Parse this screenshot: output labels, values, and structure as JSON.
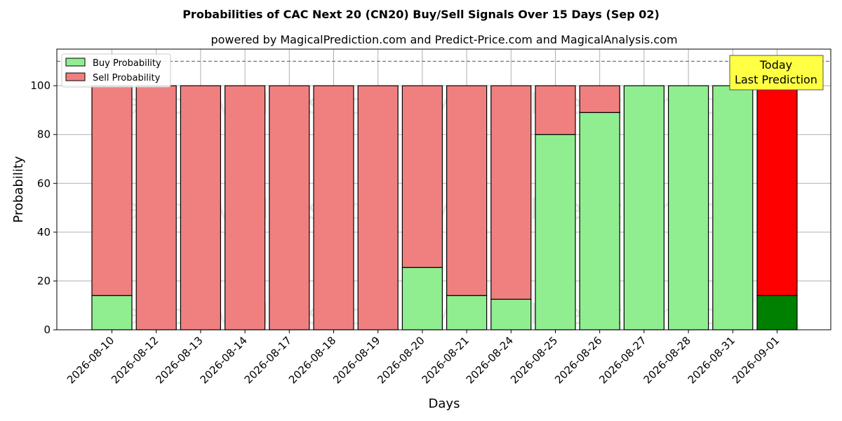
{
  "colors": {
    "buy": "#90ee90",
    "sell": "#f08080",
    "buy_today": "#008000",
    "sell_today": "#ff0000",
    "today_box": "#ffff44"
  },
  "legend": {
    "buy_label": "Buy Probability",
    "sell_label": "Sell Probability"
  },
  "annotation": {
    "today_line1": "Today",
    "today_line2": "Last Prediction"
  },
  "watermarks": [
    "MagicalAnalysis.com",
    "MagicalPrediction.com"
  ],
  "chart_data": {
    "type": "bar",
    "stacked": true,
    "title": "Probabilities of CAC Next 20 (CN20) Buy/Sell Signals Over 15 Days (Sep 02)",
    "subtitle": "powered by MagicalPrediction.com and Predict-Price.com and MagicalAnalysis.com",
    "xlabel": "Days",
    "ylabel": "Probability",
    "ylim": [
      0,
      115
    ],
    "yticks": [
      0,
      20,
      40,
      60,
      80,
      100
    ],
    "reference_line": 110,
    "grid": true,
    "legend_position": "top-left",
    "categories": [
      "2026-08-10",
      "2026-08-12",
      "2026-08-13",
      "2026-08-14",
      "2026-08-17",
      "2026-08-18",
      "2026-08-19",
      "2026-08-20",
      "2026-08-21",
      "2026-08-24",
      "2026-08-25",
      "2026-08-26",
      "2026-08-27",
      "2026-08-28",
      "2026-08-31",
      "2026-09-01"
    ],
    "series": [
      {
        "name": "Buy Probability",
        "values": [
          14,
          0,
          0,
          0,
          0,
          0,
          0,
          25.5,
          14,
          12.5,
          80,
          89,
          100,
          100,
          100,
          14
        ]
      },
      {
        "name": "Sell Probability",
        "values": [
          86,
          100,
          100,
          100,
          100,
          100,
          100,
          74.5,
          86,
          87.5,
          20,
          11,
          0,
          0,
          0,
          86
        ]
      }
    ],
    "highlight_last": true
  }
}
